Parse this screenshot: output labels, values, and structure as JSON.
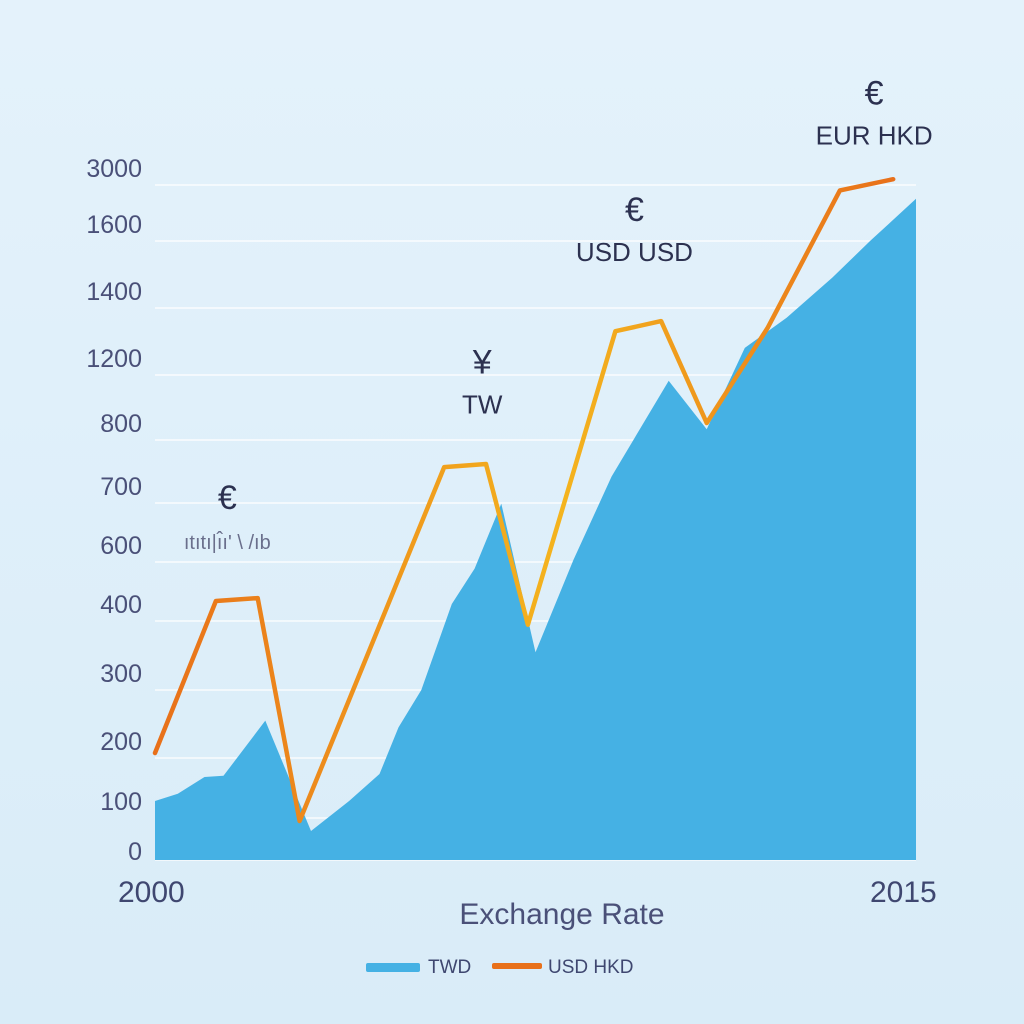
{
  "chart_data": {
    "type": "area",
    "xlabel": "Exchange Rate",
    "x_tick_labels": [
      "2000",
      "2015"
    ],
    "y_tick_labels": [
      "0",
      "100",
      "200",
      "300",
      "400",
      "600",
      "700",
      "800",
      "1200",
      "1400",
      "1600",
      "3000"
    ],
    "grid": true,
    "legend_placement": "bottom",
    "series": [
      {
        "name": "TWD",
        "type": "area",
        "color": "#45b1e4",
        "points": [
          [
            0.0,
            1.0
          ],
          [
            0.3,
            1.12
          ],
          [
            0.65,
            1.4
          ],
          [
            0.9,
            1.42
          ],
          [
            1.45,
            2.3
          ],
          [
            2.05,
            0.4
          ],
          [
            2.55,
            1.0
          ],
          [
            2.95,
            1.45
          ],
          [
            3.2,
            2.2
          ],
          [
            3.5,
            2.75
          ],
          [
            3.9,
            4.0
          ],
          [
            4.2,
            4.6
          ],
          [
            4.55,
            5.7
          ],
          [
            5.0,
            3.3
          ],
          [
            5.5,
            4.75
          ],
          [
            6.0,
            6.15
          ],
          [
            6.75,
            7.65
          ],
          [
            7.25,
            6.9
          ],
          [
            7.75,
            8.15
          ],
          [
            8.3,
            8.6
          ],
          [
            8.9,
            9.2
          ],
          [
            9.4,
            9.75
          ],
          [
            10.0,
            10.45
          ]
        ]
      },
      {
        "name": "USD HKD",
        "type": "line",
        "color_start": "#e8701a",
        "color_end": "#f4b41e",
        "points": [
          [
            0.0,
            1.8
          ],
          [
            0.8,
            4.05
          ],
          [
            1.35,
            4.1
          ],
          [
            1.9,
            0.6
          ],
          [
            3.8,
            6.3
          ],
          [
            4.35,
            6.35
          ],
          [
            4.9,
            3.7
          ],
          [
            6.05,
            8.4
          ],
          [
            6.65,
            8.55
          ],
          [
            7.25,
            7.0
          ],
          [
            8.05,
            8.45
          ],
          [
            9.0,
            10.6
          ],
          [
            9.7,
            10.8
          ]
        ]
      }
    ],
    "annotations": [
      {
        "symbol": "€",
        "text": "ıtıtı|ı̂ı' \\ /ıb",
        "x": 0.95,
        "y": 5.1
      },
      {
        "symbol": "¥",
        "text": "TW",
        "x": 4.3,
        "y": 7.3
      },
      {
        "symbol": "€",
        "text": "USD USD",
        "x": 6.3,
        "y": 9.6
      },
      {
        "symbol": "€",
        "text": "EUR HKD",
        "x": 9.45,
        "y": 11.6
      }
    ]
  }
}
